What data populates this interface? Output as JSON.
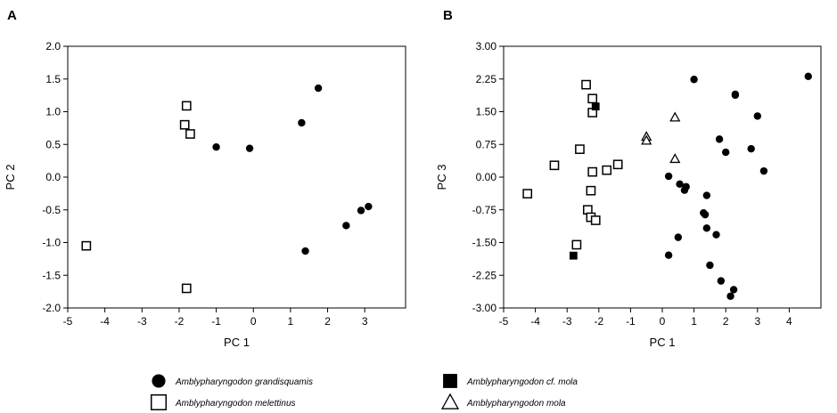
{
  "chart_data": [
    {
      "panel_label": "A",
      "type": "scatter",
      "xlabel": "PC 1",
      "ylabel": "PC 2",
      "xlim": [
        -5,
        4.1
      ],
      "ylim": [
        -2.0,
        2.0
      ],
      "x_ticks": [
        -5,
        -4,
        -3,
        -2,
        -1,
        0,
        1,
        2,
        3
      ],
      "y_ticks": [
        -2.0,
        -1.5,
        -1.0,
        -0.5,
        0.0,
        0.5,
        1.0,
        1.5,
        2.0
      ],
      "y_tick_labels": [
        "-2.0",
        "-1.5",
        "-1.0",
        "-0.5",
        "0.0",
        "0.5",
        "1.0",
        "1.5",
        "2.0"
      ],
      "grid": false,
      "series": [
        {
          "name": "Amblypharyngodon grandisquamis",
          "marker": "filled-circle",
          "points": [
            [
              -1.0,
              0.46
            ],
            [
              -0.1,
              0.44
            ],
            [
              1.3,
              0.83
            ],
            [
              1.75,
              1.36
            ],
            [
              2.5,
              -0.74
            ],
            [
              2.9,
              -0.51
            ],
            [
              3.1,
              -0.45
            ],
            [
              1.4,
              -1.13
            ]
          ]
        },
        {
          "name": "Amblypharyngodon melettinus",
          "marker": "open-square",
          "points": [
            [
              -1.8,
              1.09
            ],
            [
              -1.85,
              0.8
            ],
            [
              -1.7,
              0.66
            ],
            [
              -4.5,
              -1.05
            ],
            [
              -1.8,
              -1.7
            ]
          ]
        }
      ]
    },
    {
      "panel_label": "B",
      "type": "scatter",
      "xlabel": "PC 1",
      "ylabel": "PC 3",
      "xlim": [
        -5,
        5
      ],
      "ylim": [
        -3.0,
        3.0
      ],
      "x_ticks": [
        -5,
        -4,
        -3,
        -2,
        -1,
        0,
        1,
        2,
        3,
        4
      ],
      "y_ticks": [
        -3.0,
        -2.25,
        -1.5,
        -0.75,
        0.0,
        0.75,
        1.5,
        2.25,
        3.0
      ],
      "y_tick_labels": [
        "-3.00",
        "-2.25",
        "-1.50",
        "-0.75",
        "0.00",
        "0.75",
        "1.50",
        "2.25",
        "3.00"
      ],
      "grid": false,
      "series": [
        {
          "name": "Amblypharyngodon grandisquamis",
          "marker": "filled-circle",
          "points": [
            [
              1.0,
              2.24
            ],
            [
              2.3,
              1.9
            ],
            [
              2.3,
              1.88
            ],
            [
              4.6,
              2.31
            ],
            [
              3.0,
              1.4
            ],
            [
              1.8,
              0.87
            ],
            [
              2.0,
              0.57
            ],
            [
              2.8,
              0.65
            ],
            [
              3.2,
              0.14
            ],
            [
              0.2,
              0.02
            ],
            [
              0.55,
              -0.16
            ],
            [
              0.75,
              -0.22
            ],
            [
              0.7,
              -0.3
            ],
            [
              1.4,
              -0.42
            ],
            [
              1.3,
              -0.82
            ],
            [
              1.35,
              -0.86
            ],
            [
              1.4,
              -1.17
            ],
            [
              1.7,
              -1.32
            ],
            [
              0.5,
              -1.38
            ],
            [
              0.2,
              -1.79
            ],
            [
              1.5,
              -2.02
            ],
            [
              1.85,
              -2.38
            ],
            [
              2.25,
              -2.58
            ],
            [
              2.15,
              -2.73
            ]
          ]
        },
        {
          "name": "Amblypharyngodon melettinus",
          "marker": "open-square",
          "points": [
            [
              -2.4,
              2.12
            ],
            [
              -2.2,
              1.8
            ],
            [
              -2.2,
              1.48
            ],
            [
              -2.6,
              0.64
            ],
            [
              -3.4,
              0.27
            ],
            [
              -1.4,
              0.29
            ],
            [
              -1.75,
              0.16
            ],
            [
              -2.2,
              0.12
            ],
            [
              -4.25,
              -0.38
            ],
            [
              -2.25,
              -0.31
            ],
            [
              -2.35,
              -0.75
            ],
            [
              -2.25,
              -0.92
            ],
            [
              -2.1,
              -0.99
            ],
            [
              -2.7,
              -1.55
            ]
          ]
        },
        {
          "name": "Amblypharyngodon cf. mola",
          "marker": "filled-square",
          "points": [
            [
              -2.1,
              1.62
            ],
            [
              -2.8,
              -1.8
            ]
          ]
        },
        {
          "name": "Amblypharyngodon mola",
          "marker": "open-triangle",
          "points": [
            [
              0.4,
              1.37
            ],
            [
              -0.5,
              0.93
            ],
            [
              -0.5,
              0.84
            ],
            [
              0.4,
              0.42
            ]
          ]
        }
      ]
    }
  ],
  "legend": [
    {
      "label": "Amblypharyngodon grandisquamis",
      "marker": "filled-circle"
    },
    {
      "label": "Amblypharyngodon melettinus",
      "marker": "open-square"
    },
    {
      "label": "Amblypharyngodon cf. mola",
      "marker": "filled-square"
    },
    {
      "label": "Amblypharyngodon mola",
      "marker": "open-triangle"
    }
  ]
}
